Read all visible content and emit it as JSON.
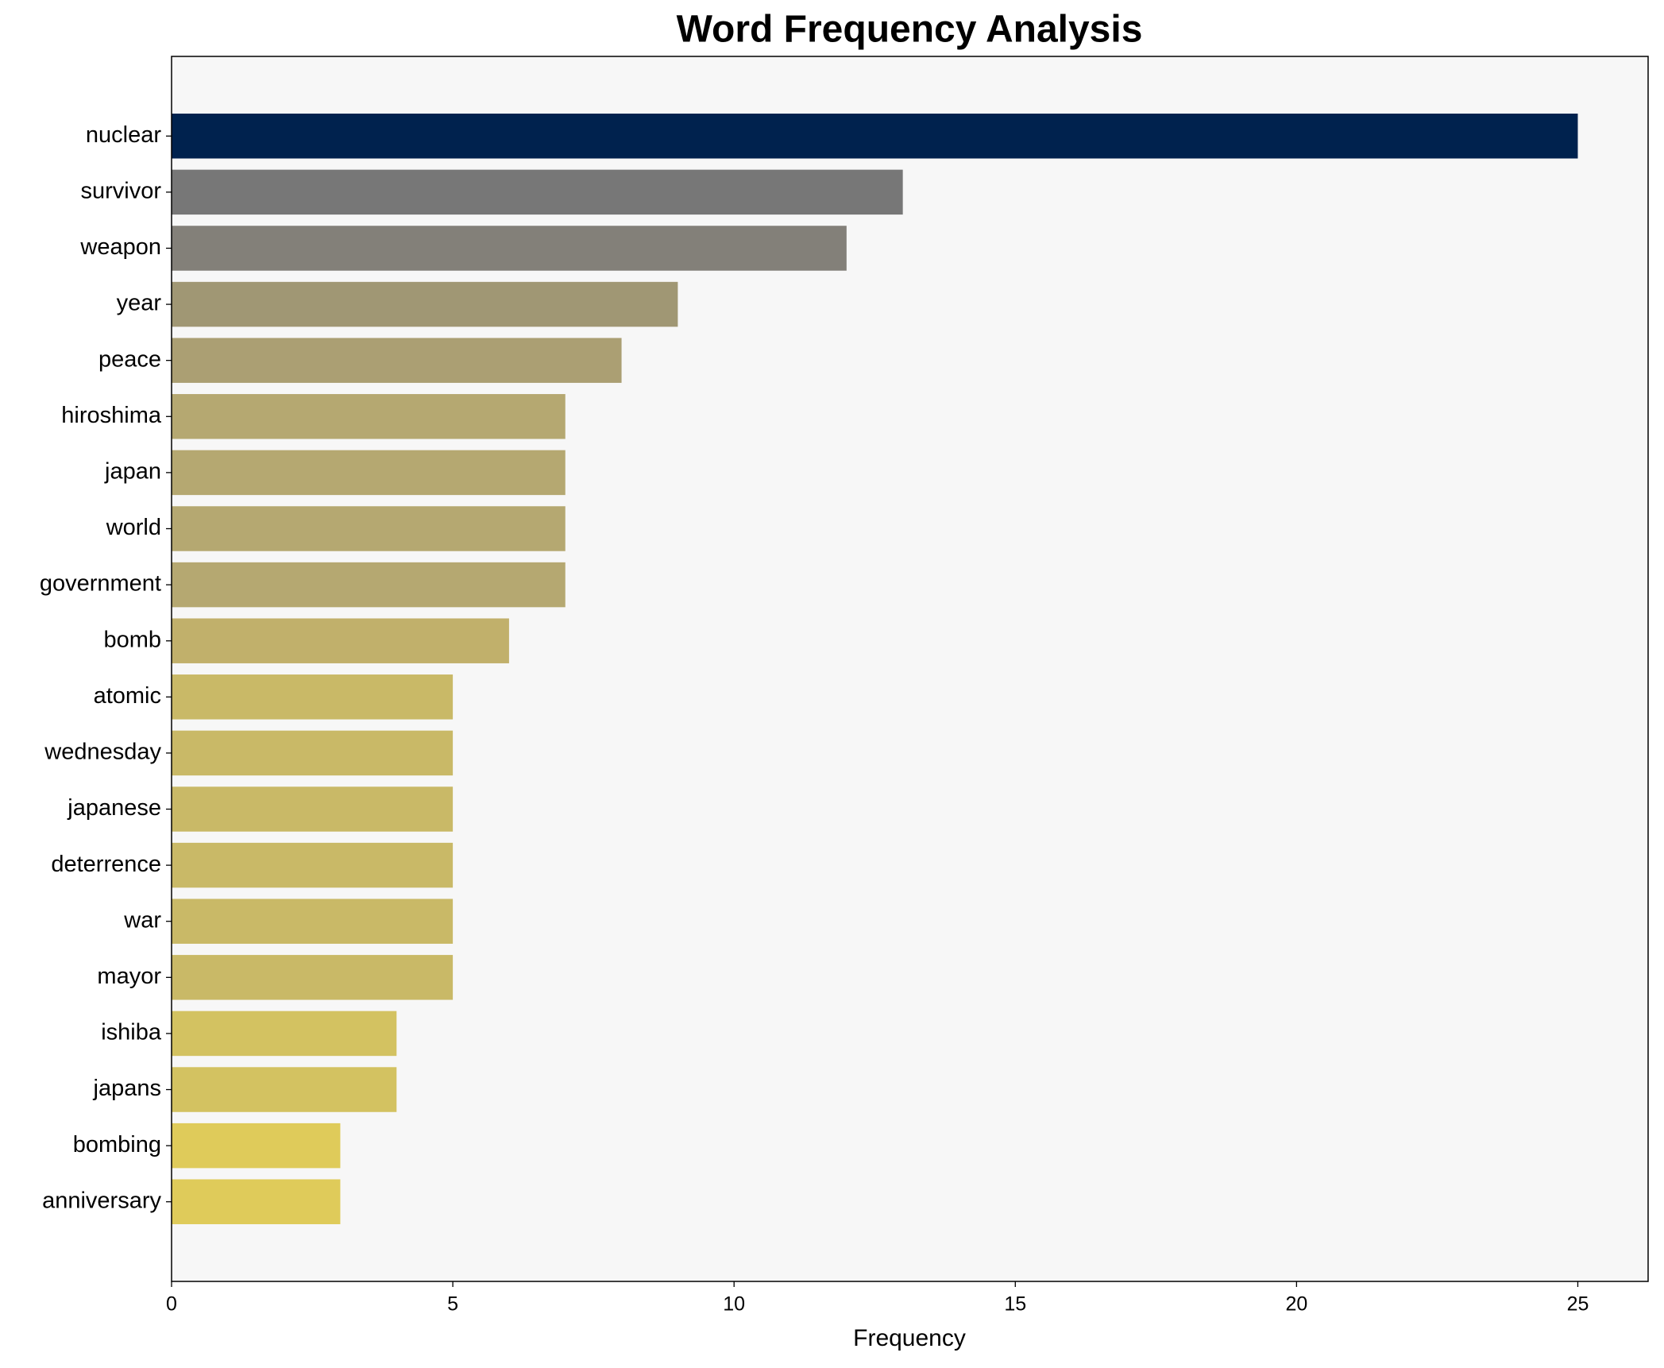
{
  "chart_data": {
    "type": "barh",
    "title": "Word Frequency Analysis",
    "x_label": "Frequency",
    "categories": [
      "nuclear",
      "survivor",
      "weapon",
      "year",
      "peace",
      "hiroshima",
      "japan",
      "world",
      "government",
      "bomb",
      "atomic",
      "wednesday",
      "japanese",
      "deterrence",
      "war",
      "mayor",
      "ishiba",
      "japans",
      "bombing",
      "anniversary"
    ],
    "values": [
      25,
      13,
      12,
      9,
      8,
      7,
      7,
      7,
      7,
      6,
      5,
      5,
      5,
      5,
      5,
      5,
      4,
      4,
      3,
      3
    ],
    "colors": [
      "#00224e",
      "#777777",
      "#838079",
      "#a09774",
      "#ab9f73",
      "#b5a871",
      "#b5a871",
      "#b5a871",
      "#b5a871",
      "#c1b06b",
      "#c9b967",
      "#c9b967",
      "#c9b967",
      "#c9b967",
      "#c9b967",
      "#c9b967",
      "#d3c261",
      "#d3c261",
      "#dfcb5a",
      "#dfcb5a"
    ],
    "xlim": [
      0,
      26.25
    ],
    "xticks": [
      0,
      5,
      10,
      15,
      20,
      25
    ],
    "background": "#f7f7f7"
  }
}
